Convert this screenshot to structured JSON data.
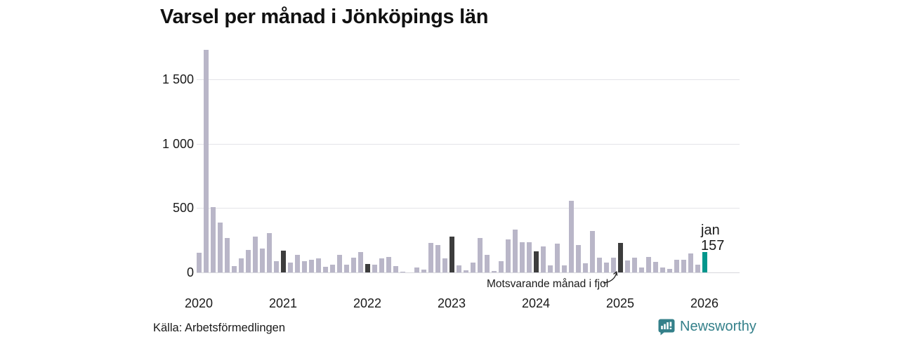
{
  "title": "Varsel per månad i Jönköpings län",
  "source": "Källa: Arbetsförmedlingen",
  "annotation": {
    "text": "Motsvarande månad i fjol"
  },
  "last_point_label": {
    "line1": "jan",
    "line2": "157"
  },
  "branding": {
    "name": "Newsworthy",
    "icon": "newsworthy-chart-bubble-icon"
  },
  "colors": {
    "bar_light": "#b9b6c8",
    "bar_dark": "#3d3d3d",
    "bar_teal": "#00968c",
    "grid": "#e4e4e8",
    "baseline": "#d7d7dd",
    "text": "#1a1a1a",
    "brand_teal": "#34808a"
  },
  "chart_data": {
    "type": "bar",
    "title": "Varsel per månad i Jönköpings län",
    "xlabel": "",
    "ylabel": "",
    "start_month": "2020-01",
    "end_month": "2026-01",
    "x_tick_labels": [
      "2020",
      "2021",
      "2022",
      "2023",
      "2024",
      "2025",
      "2026"
    ],
    "y_ticks": [
      0,
      500,
      1000,
      1500
    ],
    "y_tick_labels": [
      "0",
      "500",
      "1 000",
      "1 500"
    ],
    "ylim": [
      0,
      1760
    ],
    "grid": "horizontal-only",
    "legend": "none",
    "series": [
      {
        "name": "Varsel per månad",
        "values": [
          155,
          1730,
          508,
          388,
          270,
          49,
          110,
          176,
          277,
          185,
          308,
          85,
          170,
          74,
          134,
          89,
          98,
          107,
          43,
          58,
          134,
          62,
          112,
          156,
          65,
          62,
          107,
          119,
          48,
          8,
          0,
          38,
          22,
          228,
          212,
          110,
          280,
          52,
          16,
          74,
          270,
          134,
          11,
          89,
          255,
          335,
          233,
          232,
          166,
          203,
          52,
          221,
          52,
          554,
          215,
          71,
          324,
          112,
          74,
          115,
          230,
          95,
          115,
          38,
          120,
          80,
          38,
          25,
          98,
          98,
          145,
          60,
          157
        ]
      }
    ],
    "highlight": {
      "dark_indices": [
        12,
        24,
        36,
        48,
        60
      ],
      "dark_meaning": "Motsvarande månad i fjol",
      "teal_index": 72,
      "teal_point_label": "jan 157"
    }
  }
}
